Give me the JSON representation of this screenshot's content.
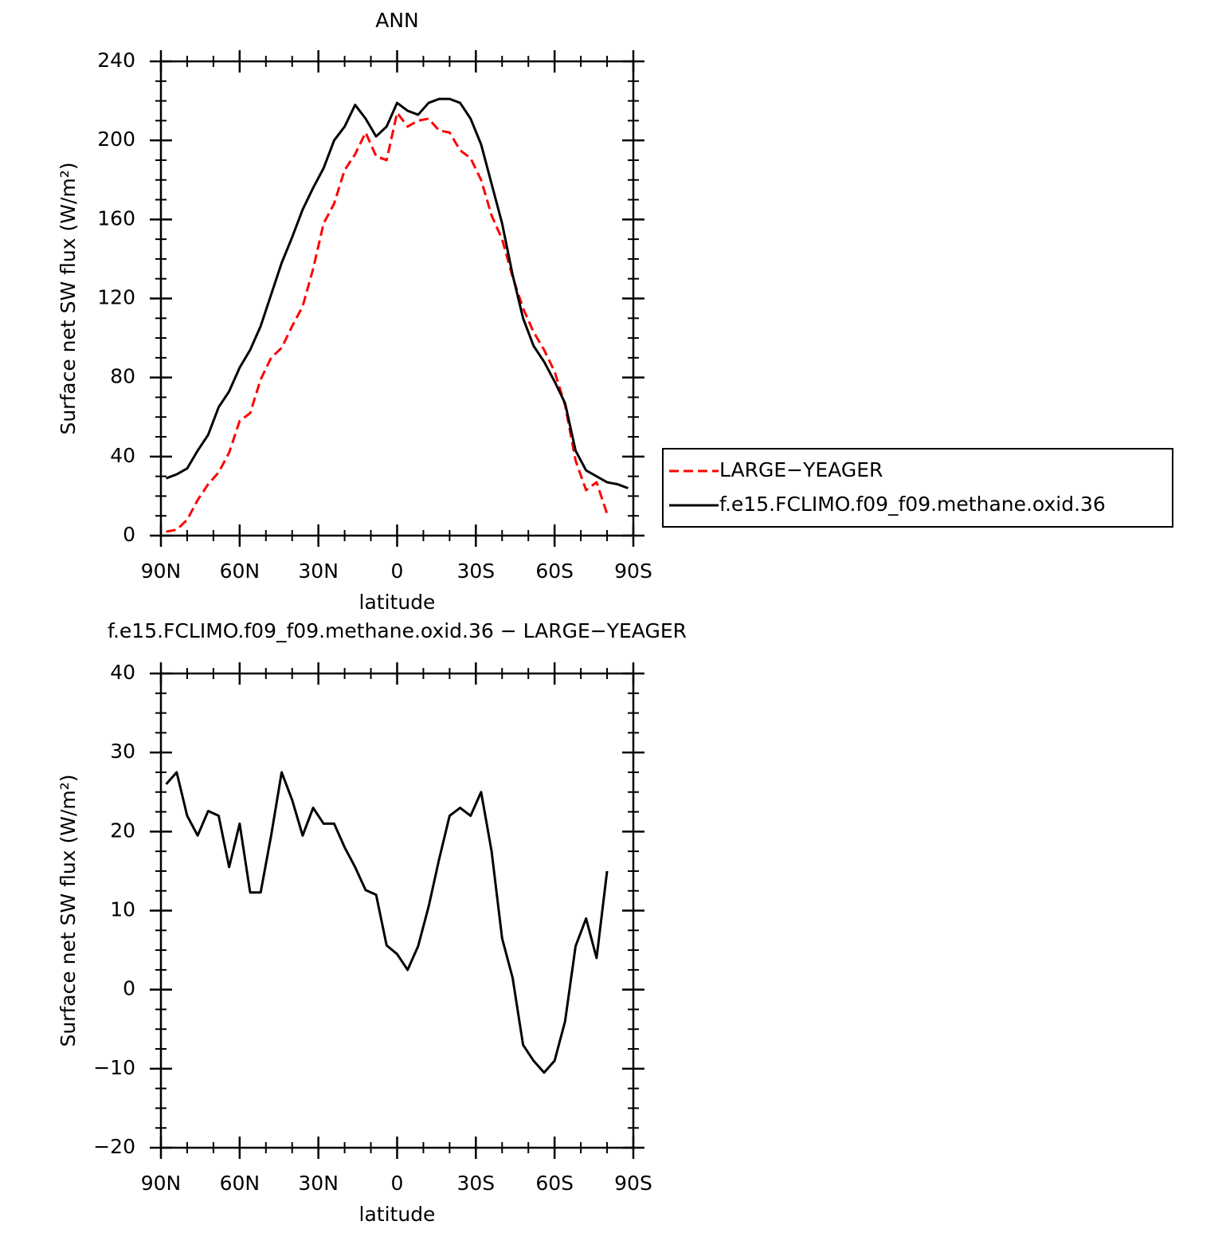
{
  "chart_data": [
    {
      "type": "line",
      "title": "ANN",
      "x_label": "latitude",
      "y_label": "Surface net SW flux (W/m²)",
      "x": [
        88,
        84,
        80,
        76,
        72,
        68,
        64,
        60,
        56,
        52,
        48,
        44,
        40,
        36,
        32,
        28,
        24,
        20,
        16,
        12,
        8,
        4,
        0,
        -4,
        -8,
        -12,
        -16,
        -20,
        -24,
        -28,
        -32,
        -36,
        -40,
        -44,
        -48,
        -52,
        -56,
        -60,
        -64,
        -68,
        -72,
        -76,
        -80,
        -84,
        -88
      ],
      "xlim": [
        90,
        -90
      ],
      "xticks": [
        {
          "value": 90,
          "label": "90N"
        },
        {
          "value": 60,
          "label": "60N"
        },
        {
          "value": 30,
          "label": "30N"
        },
        0,
        {
          "value": -30,
          "label": "30S"
        },
        {
          "value": -60,
          "label": "60S"
        },
        {
          "value": -90,
          "label": "90S"
        }
      ],
      "ylim": [
        0,
        240
      ],
      "yticks": [
        0,
        40,
        80,
        120,
        160,
        200,
        240
      ],
      "legend": "right",
      "series": [
        {
          "name": "LARGE−YEAGER",
          "color": "#ff0000",
          "line_style": "dashed",
          "values": [
            2,
            3,
            8,
            18,
            26,
            32,
            42,
            58,
            62,
            79,
            90,
            95,
            106,
            116,
            135,
            158,
            168,
            185,
            193,
            204,
            192,
            190,
            214,
            207,
            210,
            211,
            205,
            204,
            195,
            191,
            180,
            162,
            150,
            131,
            115,
            103,
            94,
            83,
            66,
            38,
            23,
            27,
            11,
            null,
            null
          ]
        },
        {
          "name": "f.e15.FCLIMO.f09_f09.methane.oxid.36",
          "color": "#000000",
          "line_style": "solid",
          "values": [
            29,
            31,
            34,
            43,
            51,
            65,
            73,
            85,
            94,
            106,
            122,
            138,
            151,
            165,
            176,
            186,
            200,
            207,
            218,
            211,
            202,
            207,
            219,
            215,
            213,
            219,
            221,
            221,
            219,
            211,
            198,
            178,
            158,
            132,
            110,
            96,
            88,
            78,
            67,
            43,
            33,
            30,
            27,
            26,
            24
          ]
        }
      ]
    },
    {
      "type": "line",
      "title": "f.e15.FCLIMO.f09_f09.methane.oxid.36 − LARGE−YEAGER",
      "x_label": "latitude",
      "y_label": "Surface net SW flux (W/m²)",
      "x": [
        88,
        84,
        80,
        76,
        72,
        68,
        64,
        60,
        56,
        52,
        48,
        44,
        40,
        36,
        32,
        28,
        24,
        20,
        16,
        12,
        8,
        4,
        0,
        -4,
        -8,
        -12,
        -16,
        -20,
        -24,
        -28,
        -32,
        -36,
        -40,
        -44,
        -48,
        -52,
        -56,
        -60,
        -64,
        -68,
        -72,
        -76,
        -80,
        -84,
        -88
      ],
      "xlim": [
        90,
        -90
      ],
      "xticks": [
        {
          "value": 90,
          "label": "90N"
        },
        {
          "value": 60,
          "label": "60N"
        },
        {
          "value": 30,
          "label": "30N"
        },
        0,
        {
          "value": -30,
          "label": "30S"
        },
        {
          "value": -60,
          "label": "60S"
        },
        {
          "value": -90,
          "label": "90S"
        }
      ],
      "ylim": [
        -20,
        40
      ],
      "yticks": [
        {
          "value": -20,
          "label": "−20"
        },
        {
          "value": -10,
          "label": "−10"
        },
        0,
        10,
        20,
        30,
        40
      ],
      "series": [
        {
          "color": "#000000",
          "line_style": "solid",
          "values": [
            26,
            27.5,
            22,
            19.5,
            22.6,
            22,
            15.5,
            21,
            12.3,
            12.3,
            19.5,
            27.5,
            24,
            19.5,
            23,
            21,
            21,
            18,
            15.5,
            12.6,
            12,
            5.6,
            4.5,
            2.5,
            5.5,
            10.5,
            16.5,
            22,
            23,
            22,
            25,
            17.5,
            6.5,
            1.5,
            -7,
            -9,
            -10.5,
            -9,
            -4,
            5.5,
            9,
            4,
            15,
            null,
            null
          ]
        }
      ]
    }
  ]
}
